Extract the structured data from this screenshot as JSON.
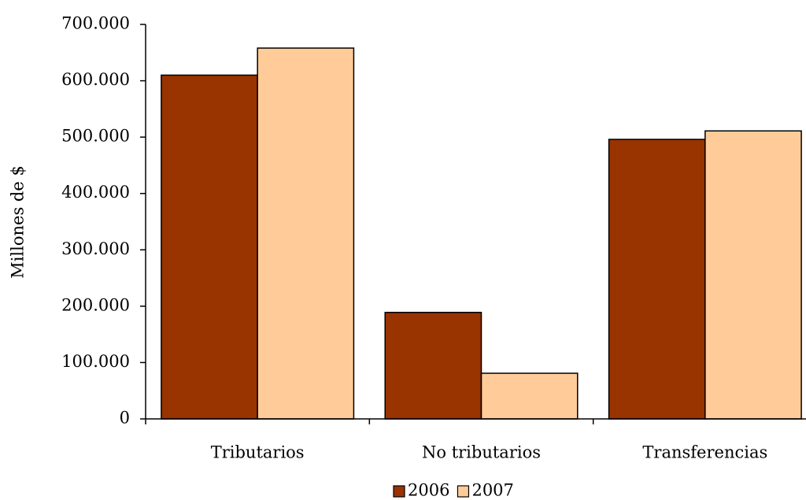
{
  "chart_data": {
    "type": "bar",
    "y_label": "Millones de $",
    "categories": [
      "Tributarios",
      "No tributarios",
      "Transferencias"
    ],
    "series": [
      {
        "name": "2006",
        "color": "#993300",
        "values": [
          610000,
          189000,
          496000
        ]
      },
      {
        "name": "2007",
        "color": "#ffcc99",
        "values": [
          658000,
          81000,
          511000
        ]
      }
    ],
    "ylim": [
      0,
      700000
    ],
    "yticks": [
      0,
      {
        "value": 100000,
        "label": "100.000"
      },
      {
        "value": 200000,
        "label": "200.000"
      },
      {
        "value": 300000,
        "label": "300.000"
      },
      {
        "value": 400000,
        "label": "400.000"
      },
      {
        "value": 500000,
        "label": "500.000"
      },
      {
        "value": 600000,
        "label": "600.000"
      },
      {
        "value": 700000,
        "label": "700.000"
      }
    ],
    "grid": false,
    "legend": "bottom"
  }
}
